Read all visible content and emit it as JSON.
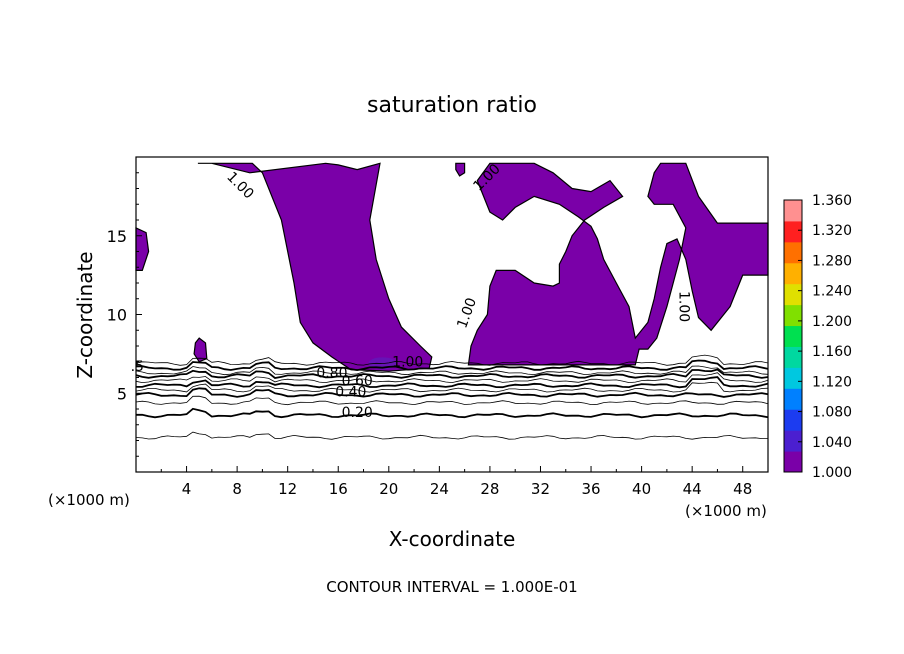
{
  "chart_data": {
    "type": "contour",
    "title": "saturation ratio",
    "xlabel": "X-coordinate",
    "ylabel": "Z-coordinate",
    "x_unit": "(×1000 m)",
    "z_unit": "(×1000 m)",
    "xlim": [
      0,
      50
    ],
    "ylim": [
      0,
      20
    ],
    "x_ticks": [
      "4",
      "8",
      "12",
      "16",
      "20",
      "24",
      "28",
      "32",
      "36",
      "40",
      "44",
      "48"
    ],
    "y_ticks": [
      "5",
      "10",
      "15"
    ],
    "footer": "CONTOUR INTERVAL = 1.000E-01",
    "colorbar": {
      "range": [
        1.0,
        1.36
      ],
      "tick_labels": [
        "1.360",
        "1.320",
        "1.280",
        "1.240",
        "1.200",
        "1.160",
        "1.120",
        "1.080",
        "1.040",
        "1.000"
      ],
      "colors": [
        "#7a00a8",
        "#4b1fd0",
        "#1c3cf0",
        "#0080ff",
        "#00c8e0",
        "#00d8a0",
        "#00e050",
        "#80e000",
        "#e0e000",
        "#ffb000",
        "#ff7000",
        "#ff2020",
        "#ff9090"
      ]
    },
    "contour_labels": [
      {
        "text": "1.00",
        "x": 8.0,
        "z": 18.0,
        "rot": 45
      },
      {
        "text": "1.00",
        "x": 28.0,
        "z": 18.5,
        "rot": -45
      },
      {
        "text": "1.00",
        "x": 26.5,
        "z": 10.0,
        "rot": -70
      },
      {
        "text": "1.00",
        "x": 43.0,
        "z": 10.5,
        "rot": 90
      },
      {
        "text": "1.00",
        "x": 21.5,
        "z": 6.7,
        "rot": 0
      },
      {
        "text": "0.80",
        "x": 15.5,
        "z": 6.0,
        "rot": 0
      },
      {
        "text": "0.60",
        "x": 17.5,
        "z": 5.5,
        "rot": 0
      },
      {
        "text": "0.40",
        "x": 17.0,
        "z": 4.8,
        "rot": 0
      },
      {
        "text": "0.20",
        "x": 17.5,
        "z": 3.5,
        "rot": 0
      },
      {
        "text": ".5",
        "x": 0.1,
        "z": 6.4,
        "rot": 0
      }
    ],
    "contour_levels_z": [
      6.9,
      6.6,
      6.3,
      6.1,
      5.8,
      5.5,
      5.2,
      4.9,
      4.4,
      3.6,
      2.2
    ],
    "saturated_regions": [
      [
        [
          4.9,
          19.6
        ],
        [
          9.2,
          19.6
        ],
        [
          10,
          19.0
        ],
        [
          11.5,
          16.0
        ],
        [
          12.5,
          12.0
        ],
        [
          13.0,
          9.5
        ],
        [
          14.0,
          8.2
        ],
        [
          15.5,
          7.3
        ],
        [
          17.0,
          6.5
        ],
        [
          20.0,
          6.4
        ],
        [
          23.2,
          6.6
        ],
        [
          23.4,
          7.3
        ],
        [
          22.5,
          8.0
        ],
        [
          21.0,
          9.2
        ],
        [
          20.0,
          11.0
        ],
        [
          19.0,
          13.5
        ],
        [
          18.5,
          16.0
        ],
        [
          19.3,
          19.6
        ],
        [
          17.5,
          19.2
        ],
        [
          16.0,
          19.5
        ],
        [
          15.0,
          19.6
        ],
        [
          9.0,
          19.0
        ],
        [
          6.0,
          19.6
        ]
      ],
      [
        [
          27.0,
          18.5
        ],
        [
          28.0,
          19.6
        ],
        [
          31.5,
          19.6
        ],
        [
          33.0,
          19.0
        ],
        [
          34.5,
          18.0
        ],
        [
          36.0,
          17.8
        ],
        [
          37.5,
          18.5
        ],
        [
          38.5,
          17.5
        ],
        [
          37.0,
          16.8
        ],
        [
          35.5,
          16.0
        ],
        [
          34.5,
          15.0
        ],
        [
          34.0,
          14.0
        ],
        [
          33.5,
          13.2
        ],
        [
          33.5,
          12.0
        ],
        [
          33.0,
          11.8
        ],
        [
          31.5,
          12.0
        ],
        [
          30.0,
          12.8
        ],
        [
          28.5,
          12.8
        ],
        [
          28.0,
          11.8
        ],
        [
          27.8,
          10.0
        ],
        [
          27.0,
          9.0
        ],
        [
          26.5,
          8.0
        ],
        [
          26.3,
          6.8
        ],
        [
          39.5,
          6.8
        ],
        [
          39.8,
          7.8
        ],
        [
          40.5,
          7.8
        ],
        [
          41.2,
          8.5
        ],
        [
          42.0,
          10.5
        ],
        [
          43.0,
          13.5
        ],
        [
          43.5,
          15.5
        ],
        [
          42.5,
          17.0
        ],
        [
          41.0,
          17.0
        ],
        [
          40.5,
          17.5
        ],
        [
          41.0,
          19.0
        ],
        [
          41.5,
          19.6
        ],
        [
          43.5,
          19.6
        ],
        [
          44.5,
          17.5
        ],
        [
          46.0,
          15.8
        ],
        [
          50.0,
          15.8
        ],
        [
          50.0,
          12.5
        ],
        [
          48.0,
          12.5
        ],
        [
          47.0,
          10.5
        ],
        [
          45.5,
          9.0
        ],
        [
          44.5,
          9.8
        ],
        [
          44.0,
          11.5
        ],
        [
          43.5,
          13.5
        ],
        [
          42.8,
          14.8
        ],
        [
          42.0,
          14.5
        ],
        [
          41.5,
          13.0
        ],
        [
          41.0,
          11.0
        ],
        [
          40.5,
          9.5
        ],
        [
          39.5,
          8.5
        ],
        [
          39.0,
          10.5
        ],
        [
          38.0,
          12.0
        ],
        [
          37.0,
          13.5
        ],
        [
          36.5,
          14.8
        ],
        [
          36.0,
          15.6
        ],
        [
          35.0,
          16.2
        ],
        [
          33.5,
          17.0
        ],
        [
          31.5,
          17.5
        ],
        [
          30.0,
          16.8
        ],
        [
          29.0,
          16.0
        ],
        [
          28.0,
          16.5
        ],
        [
          27.5,
          17.5
        ]
      ],
      [
        [
          0.0,
          15.5
        ],
        [
          0.8,
          15.2
        ],
        [
          1.0,
          14.0
        ],
        [
          0.5,
          12.8
        ],
        [
          0.0,
          12.8
        ]
      ],
      [
        [
          5.0,
          8.5
        ],
        [
          5.5,
          8.2
        ],
        [
          5.6,
          7.2
        ],
        [
          5.0,
          7.0
        ],
        [
          4.6,
          7.5
        ],
        [
          4.7,
          8.2
        ]
      ],
      [
        [
          25.3,
          19.6
        ],
        [
          26.0,
          19.6
        ],
        [
          26.0,
          19.0
        ],
        [
          25.6,
          18.8
        ],
        [
          25.3,
          19.2
        ]
      ]
    ],
    "grid": false,
    "legend": "colorbar-right"
  }
}
